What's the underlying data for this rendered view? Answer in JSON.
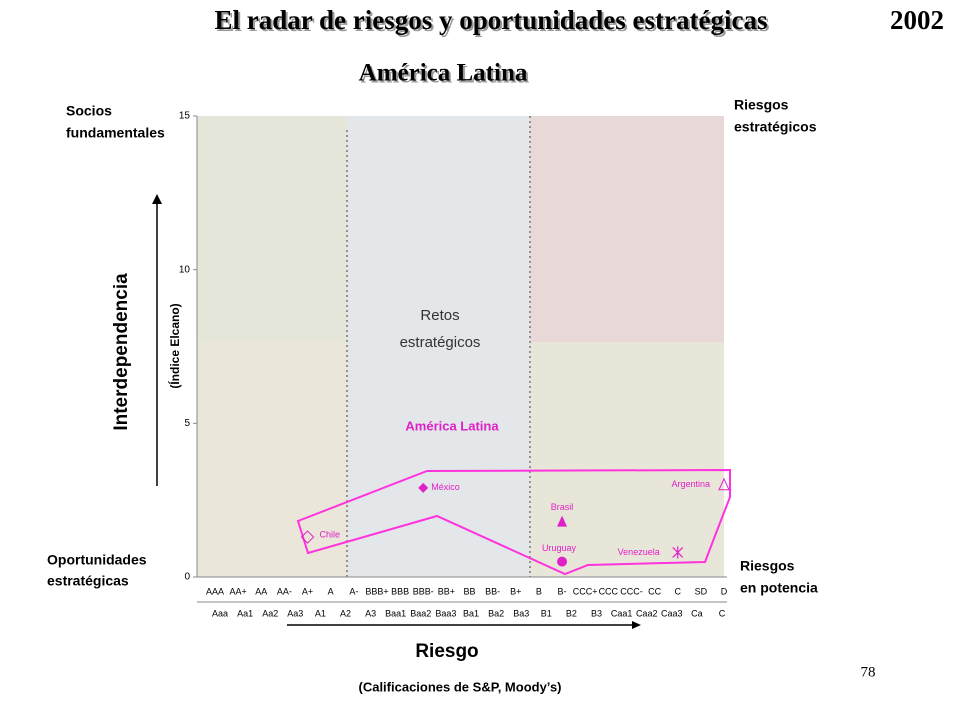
{
  "chart_data": {
    "type": "scatter",
    "title": "El radar de riesgos y oportunidades estratégicas",
    "year": "2002",
    "subtitle": "América Latina",
    "y_label": "Interdependencia",
    "y_sublabel": "(Índice Elcano)",
    "x_label": "Riesgo",
    "x_sublabel": "(Calificaciones de S&P, Moody’s)",
    "quadrant_labels": {
      "top_left": [
        "Socios",
        "fundamentales"
      ],
      "top_right": [
        "Riesgos",
        "estratégicos"
      ],
      "bottom_left": [
        "Oportunidades",
        "estratégicas"
      ],
      "bottom_right": [
        "Riesgos",
        "en potencia"
      ],
      "center": [
        "Retos",
        "estratégicos"
      ]
    },
    "region_label": "América Latina",
    "categories": [
      "AAA",
      "AA+",
      "AA",
      "AA-",
      "A+",
      "A",
      "A-",
      "BBB+",
      "BBB",
      "BBB-",
      "BB+",
      "BB",
      "BB-",
      "B+",
      "B",
      "B-",
      "CCC+",
      "CCC",
      "CCC-",
      "CC",
      "C",
      "SD",
      "D"
    ],
    "categories_moodys": [
      "Aaa",
      "Aa1",
      "Aa2",
      "Aa3",
      "A1",
      "A2",
      "A3",
      "Baa1",
      "Baa2",
      "Baa3",
      "Ba1",
      "Ba2",
      "Ba3",
      "B1",
      "B2",
      "B3",
      "Caa1",
      "Caa2",
      "Caa3",
      "Ca",
      "C"
    ],
    "ylim": [
      0,
      15
    ],
    "yticks": [
      0,
      5,
      10,
      15
    ],
    "color": "#e020c8",
    "points": [
      {
        "name": "México",
        "x": "BBB-",
        "y": 2.9,
        "marker": "diamond-filled"
      },
      {
        "name": "Brasil",
        "x": "B-",
        "y": 1.8,
        "marker": "triangle-filled"
      },
      {
        "name": "Uruguay",
        "x": "B-",
        "y": 0.5,
        "marker": "circle-filled"
      },
      {
        "name": "Venezuela",
        "x": "C",
        "y": 0.8,
        "marker": "asterisk"
      },
      {
        "name": "Argentina",
        "x": "D",
        "y": 3.0,
        "marker": "triangle-open"
      },
      {
        "name": "Chile",
        "x": "A+",
        "y": 1.3,
        "marker": "diamond-open"
      }
    ],
    "page_number": "78"
  }
}
